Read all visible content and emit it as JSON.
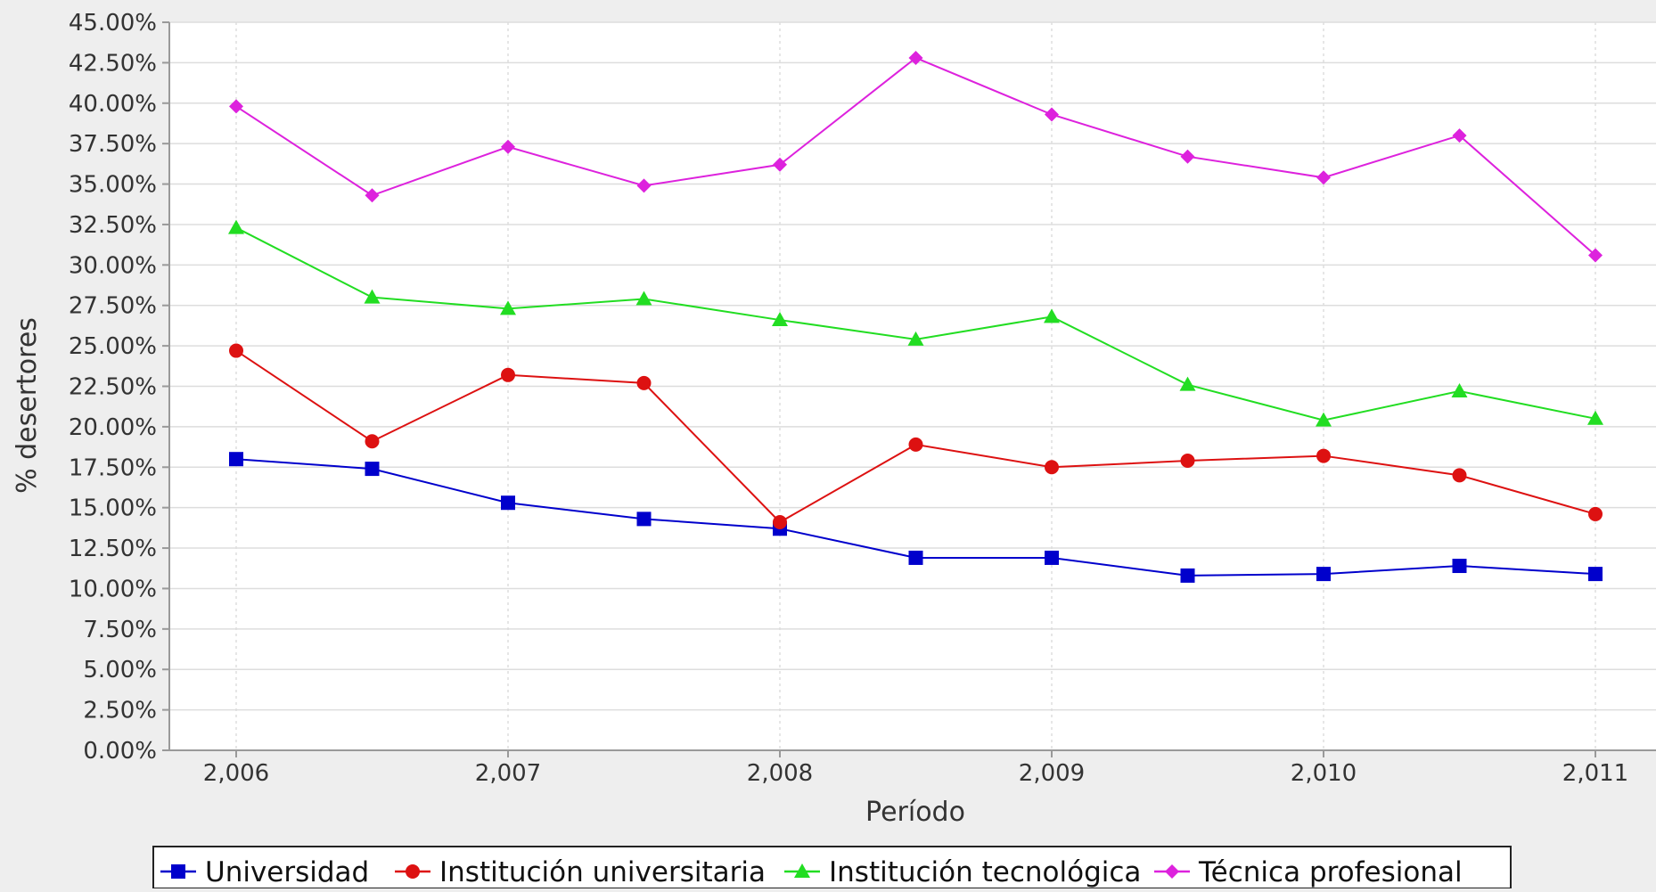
{
  "chart_data": {
    "type": "line",
    "xlabel": "Período",
    "ylabel": "% desertores",
    "ylim": [
      0,
      45
    ],
    "xlim": [
      2006,
      2011
    ],
    "y_ticks": [
      "0.00%",
      "2.50%",
      "5.00%",
      "7.50%",
      "10.00%",
      "12.50%",
      "15.00%",
      "17.50%",
      "20.00%",
      "22.50%",
      "25.00%",
      "27.50%",
      "30.00%",
      "32.50%",
      "35.00%",
      "37.50%",
      "40.00%",
      "42.50%",
      "45.00%"
    ],
    "x_ticks": [
      "2,006",
      "2,007",
      "2,008",
      "2,009",
      "2,010",
      "2,011"
    ],
    "grid": true,
    "legend_position": "bottom",
    "x": [
      2006,
      2006.5,
      2007,
      2007.5,
      2008,
      2008.5,
      2009,
      2009.5,
      2010,
      2010.5,
      2011
    ],
    "series": [
      {
        "name": "Universidad",
        "color": "#0000cc",
        "marker": "square",
        "values": [
          18.0,
          17.4,
          15.3,
          14.3,
          13.7,
          11.9,
          11.9,
          10.8,
          10.9,
          11.4,
          10.9
        ]
      },
      {
        "name": "Institución universitaria",
        "color": "#dd1111",
        "marker": "circle",
        "values": [
          24.7,
          19.1,
          23.2,
          22.7,
          14.1,
          18.9,
          17.5,
          17.9,
          18.2,
          17.0,
          14.6
        ]
      },
      {
        "name": "Institución tecnológica",
        "color": "#22dd22",
        "marker": "triangle",
        "values": [
          32.3,
          28.0,
          27.3,
          27.9,
          26.6,
          25.4,
          26.8,
          22.6,
          20.4,
          22.2,
          20.5
        ]
      },
      {
        "name": "Técnica profesional",
        "color": "#dd22dd",
        "marker": "diamond",
        "values": [
          39.8,
          34.3,
          37.3,
          34.9,
          36.2,
          42.8,
          39.3,
          36.7,
          35.4,
          38.0,
          30.6
        ]
      }
    ]
  }
}
